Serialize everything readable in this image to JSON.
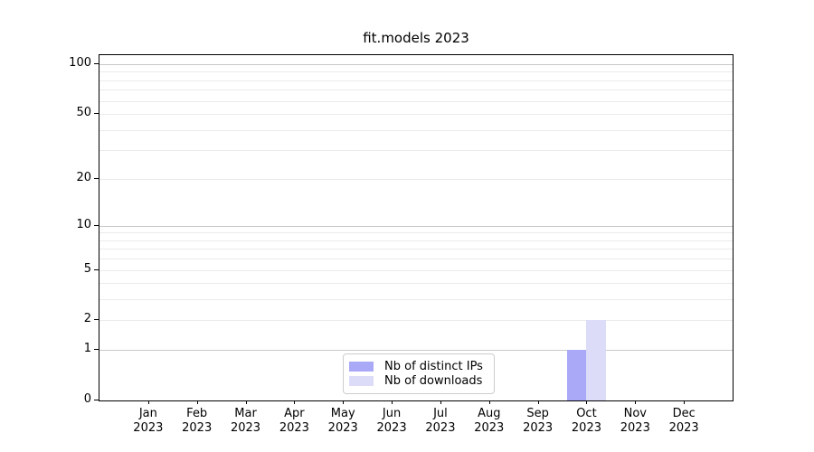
{
  "title": "fit.models 2023",
  "legend": {
    "position": "lower center",
    "items": [
      {
        "label": "Nb of distinct IPs",
        "color": "#a9a9f7"
      },
      {
        "label": "Nb of downloads",
        "color": "#dcdbf8"
      }
    ]
  },
  "colors": {
    "background": "#ffffff",
    "axis": "#000000",
    "grid_major": "#c9c9c9",
    "grid_minor": "#ebebeb",
    "bar_distinct_ips": "#a9a9f7",
    "bar_downloads": "#dcdbf8",
    "legend_border": "#cccccc"
  },
  "chart_data": {
    "type": "bar",
    "title": "fit.models 2023",
    "xlabel": "",
    "ylabel": "",
    "categories": [
      {
        "month": "Jan",
        "year": "2023"
      },
      {
        "month": "Feb",
        "year": "2023"
      },
      {
        "month": "Mar",
        "year": "2023"
      },
      {
        "month": "Apr",
        "year": "2023"
      },
      {
        "month": "May",
        "year": "2023"
      },
      {
        "month": "Jun",
        "year": "2023"
      },
      {
        "month": "Jul",
        "year": "2023"
      },
      {
        "month": "Aug",
        "year": "2023"
      },
      {
        "month": "Sep",
        "year": "2023"
      },
      {
        "month": "Oct",
        "year": "2023"
      },
      {
        "month": "Nov",
        "year": "2023"
      },
      {
        "month": "Dec",
        "year": "2023"
      }
    ],
    "series": [
      {
        "name": "Nb of distinct IPs",
        "color": "#a9a9f7",
        "values": [
          0,
          0,
          0,
          0,
          0,
          0,
          0,
          0,
          0,
          1,
          0,
          0
        ]
      },
      {
        "name": "Nb of downloads",
        "color": "#dcdbf8",
        "values": [
          0,
          0,
          0,
          0,
          0,
          0,
          0,
          0,
          0,
          2,
          0,
          0
        ]
      }
    ],
    "yscale": "log1p",
    "ylim": [
      0,
      113
    ],
    "yticks": [
      0,
      1,
      2,
      5,
      10,
      20,
      50,
      100
    ],
    "gridlines": {
      "major": [
        1,
        10,
        100
      ],
      "minor": [
        2,
        3,
        4,
        5,
        6,
        7,
        8,
        9,
        20,
        30,
        40,
        50,
        60,
        70,
        80,
        90
      ]
    },
    "grid": "horizontal",
    "legend_position": "lower center"
  }
}
